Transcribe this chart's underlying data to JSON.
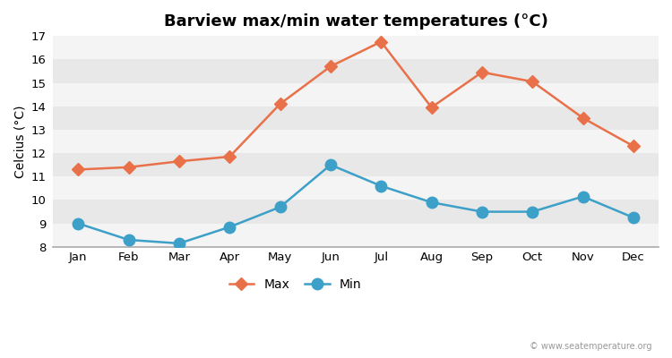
{
  "title": "Barview max/min water temperatures (°C)",
  "ylabel": "Celcius (°C)",
  "months": [
    "Jan",
    "Feb",
    "Mar",
    "Apr",
    "May",
    "Jun",
    "Jul",
    "Aug",
    "Sep",
    "Oct",
    "Nov",
    "Dec"
  ],
  "max_temps": [
    11.3,
    11.4,
    11.65,
    11.85,
    14.1,
    15.7,
    16.75,
    13.95,
    15.45,
    15.05,
    13.5,
    12.3
  ],
  "min_temps": [
    9.0,
    8.3,
    8.15,
    8.85,
    9.7,
    11.5,
    10.6,
    9.9,
    9.5,
    9.5,
    10.15,
    9.25
  ],
  "max_color": "#e8714a",
  "min_color": "#3ca0c8",
  "figure_bg": "#ffffff",
  "plot_bg_dark": "#e8e8e8",
  "plot_bg_light": "#f4f4f4",
  "ylim": [
    8,
    17
  ],
  "yticks": [
    8,
    9,
    10,
    11,
    12,
    13,
    14,
    15,
    16,
    17
  ],
  "watermark": "© www.seatemperature.org",
  "legend_labels": [
    "Max",
    "Min"
  ],
  "title_fontsize": 13,
  "label_fontsize": 10,
  "tick_fontsize": 9.5,
  "max_marker": "D",
  "min_marker": "o",
  "max_markersize": 7,
  "min_markersize": 9,
  "linewidth": 1.8
}
